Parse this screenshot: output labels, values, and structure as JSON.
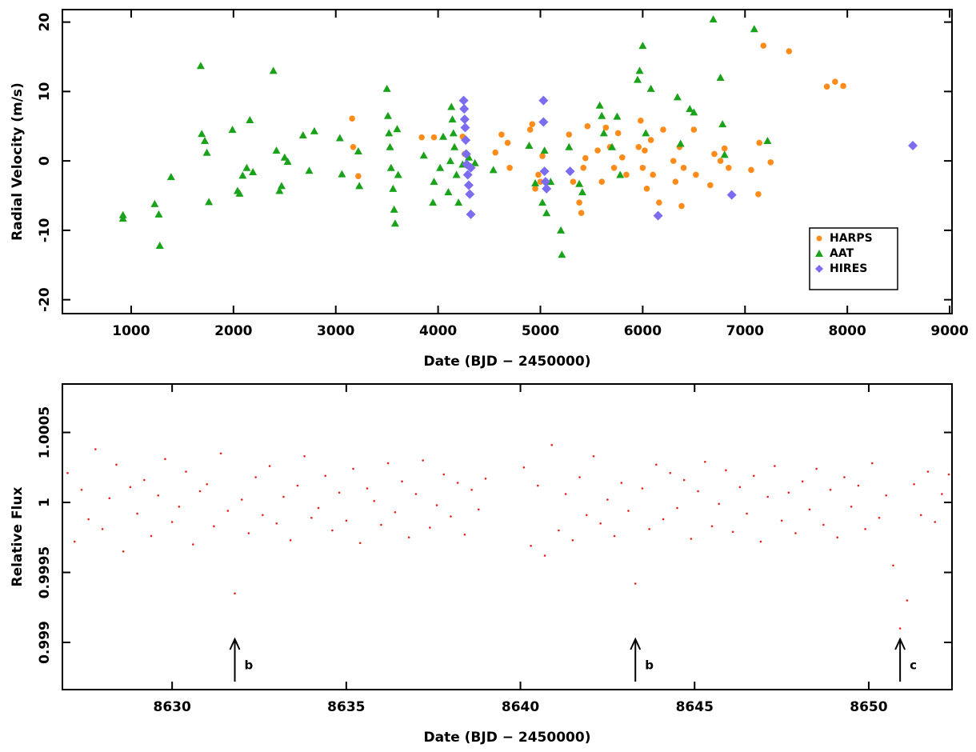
{
  "chart_data": [
    {
      "type": "scatter",
      "xlabel": "Date (BJD − 2450000)",
      "ylabel": "Radial Velocity (m/s)",
      "xlim": [
        328,
        9023
      ],
      "ylim": [
        -22,
        21.8
      ],
      "xticks": [
        1000,
        2000,
        3000,
        4000,
        5000,
        6000,
        7000,
        8000,
        9000
      ],
      "yticks": [
        -20,
        -10,
        0,
        10,
        20
      ],
      "legend": "lower right",
      "series": [
        {
          "name": "HARPS",
          "color": "#ff8c1a",
          "marker": "circle",
          "x": [
            3160,
            3170,
            3220,
            3840,
            3960,
            4240,
            4260,
            4560,
            4620,
            4680,
            4700,
            4900,
            4920,
            4950,
            4980,
            5000,
            5020,
            5280,
            5320,
            5380,
            5400,
            5420,
            5440,
            5460,
            5560,
            5600,
            5640,
            5680,
            5720,
            5760,
            5800,
            5840,
            5960,
            5980,
            6000,
            6020,
            6040,
            6080,
            6100,
            6160,
            6200,
            6300,
            6320,
            6360,
            6380,
            6400,
            6500,
            6520,
            6660,
            6700,
            6760,
            6800,
            6840,
            7060,
            7130,
            7140,
            7180,
            7250,
            7430,
            7800,
            7880,
            7960
          ],
          "values": [
            6.1,
            2,
            -2.2,
            3.4,
            3.4,
            3.5,
            1,
            1.2,
            3.8,
            2.6,
            -1,
            4.5,
            5.3,
            -4,
            -2,
            -3,
            0.7,
            3.8,
            -3,
            -6,
            -7.5,
            -1,
            0.4,
            5,
            1.5,
            -3,
            4.8,
            2,
            -1,
            4,
            0.5,
            -2,
            2,
            5.8,
            -1,
            1.5,
            -4,
            3,
            -2,
            -6,
            4.5,
            0,
            -3,
            2,
            -6.5,
            -1,
            4.5,
            -2,
            -3.5,
            1,
            0,
            1.8,
            -1,
            -1.3,
            -4.8,
            2.6,
            16.6,
            -0.2,
            15.8,
            10.7,
            11.4,
            10.8
          ]
        },
        {
          "name": "AAT",
          "color": "#1aa31a",
          "marker": "triangle",
          "x": [
            920,
            920,
            1230,
            1270,
            1280,
            1390,
            1680,
            1690,
            1720,
            1740,
            1760,
            1990,
            2040,
            2060,
            2090,
            2130,
            2160,
            2190,
            2390,
            2420,
            2450,
            2470,
            2500,
            2530,
            2680,
            2740,
            2790,
            3040,
            3060,
            3220,
            3230,
            3500,
            3510,
            3520,
            3530,
            3540,
            3560,
            3570,
            3580,
            3600,
            3610,
            3860,
            3950,
            3960,
            4020,
            4050,
            4100,
            4120,
            4130,
            4140,
            4150,
            4160,
            4180,
            4200,
            4240,
            4300,
            4360,
            4540,
            4890,
            4950,
            5020,
            5040,
            5060,
            5100,
            5200,
            5210,
            5280,
            5380,
            5410,
            5580,
            5600,
            5620,
            5700,
            5750,
            5780,
            5950,
            5970,
            6000,
            6030,
            6080,
            6340,
            6370,
            6460,
            6500,
            6690,
            6760,
            6780,
            6800,
            7090,
            7220
          ],
          "values": [
            -7.8,
            -8.3,
            -6.2,
            -7.7,
            -12.2,
            -2.3,
            13.7,
            3.9,
            2.9,
            1.2,
            -5.9,
            4.5,
            -4.3,
            -4.7,
            -2.1,
            -1,
            5.9,
            -1.6,
            13,
            1.5,
            -4.3,
            -3.6,
            0.5,
            -0.1,
            3.7,
            -1.4,
            4.3,
            3.3,
            -1.9,
            1.4,
            -3.6,
            10.4,
            6.5,
            4,
            2,
            -1,
            -4,
            -7,
            -9,
            4.6,
            -2,
            0.8,
            -6,
            -3,
            -1,
            3.5,
            -4.5,
            0,
            7.8,
            6,
            4,
            2,
            -2,
            -6,
            -0.5,
            0.5,
            -0.3,
            -1.3,
            2.2,
            -3.2,
            -6,
            1.5,
            -7.5,
            -3,
            -10,
            -13.5,
            2,
            -3.3,
            -4.5,
            8,
            6.5,
            4,
            2,
            6.4,
            -2,
            11.7,
            13,
            16.6,
            4,
            10.4,
            9.2,
            2.5,
            7.5,
            7,
            20.4,
            12,
            5.3,
            0.9,
            19,
            2.9
          ]
        },
        {
          "name": "HIRES",
          "color": "#7b6cf0",
          "marker": "diamond",
          "x": [
            4250,
            4255,
            4260,
            4265,
            4270,
            4275,
            4280,
            4290,
            4300,
            4310,
            4320,
            4320,
            5030,
            5030,
            5040,
            5050,
            5060,
            5290,
            6150,
            6870,
            8640
          ],
          "values": [
            8.7,
            7.5,
            6,
            4.8,
            3,
            1,
            -0.5,
            -2,
            -3.5,
            -4.8,
            -7.7,
            -1,
            8.7,
            5.6,
            -1.5,
            -3,
            -4,
            -1.5,
            -7.9,
            -4.9,
            2.2
          ]
        }
      ]
    },
    {
      "type": "scatter",
      "xlabel": "Date (BJD − 2450000)",
      "ylabel": "Relative Flux",
      "xlim": [
        8626.85,
        8652.39
      ],
      "ylim": [
        0.998663,
        1.000846
      ],
      "xticks": [
        8630,
        8635,
        8640,
        8645,
        8650
      ],
      "yticks": [
        0.999,
        0.9995,
        1,
        1.0005
      ],
      "series": [
        {
          "color": "#e8221b",
          "marker": "dot",
          "x": [
            8627.0,
            8627.2,
            8627.4,
            8627.6,
            8627.8,
            8628.0,
            8628.2,
            8628.4,
            8628.6,
            8628.8,
            8629.0,
            8629.2,
            8629.4,
            8629.6,
            8629.8,
            8630.0,
            8630.2,
            8630.4,
            8630.6,
            8630.8,
            8631.0,
            8631.2,
            8631.4,
            8631.6,
            8631.8,
            8632.0,
            8632.2,
            8632.4,
            8632.6,
            8632.8,
            8633.0,
            8633.2,
            8633.4,
            8633.6,
            8633.8,
            8634.0,
            8634.2,
            8634.4,
            8634.6,
            8634.8,
            8635.0,
            8635.2,
            8635.4,
            8635.6,
            8635.8,
            8636.0,
            8636.2,
            8636.4,
            8636.6,
            8636.8,
            8637.0,
            8637.2,
            8637.4,
            8637.6,
            8637.8,
            8638.0,
            8638.2,
            8638.4,
            8638.6,
            8638.8,
            8639.0,
            8640.1,
            8640.3,
            8640.5,
            8640.7,
            8640.9,
            8641.1,
            8641.3,
            8641.5,
            8641.7,
            8641.9,
            8642.1,
            8642.3,
            8642.5,
            8642.7,
            8642.9,
            8643.1,
            8643.3,
            8643.5,
            8643.7,
            8643.9,
            8644.1,
            8644.3,
            8644.5,
            8644.7,
            8644.9,
            8645.1,
            8645.3,
            8645.5,
            8645.7,
            8645.9,
            8646.1,
            8646.3,
            8646.5,
            8646.7,
            8646.9,
            8647.1,
            8647.3,
            8647.5,
            8647.7,
            8647.9,
            8648.1,
            8648.3,
            8648.5,
            8648.7,
            8648.9,
            8649.1,
            8649.3,
            8649.5,
            8649.7,
            8649.9,
            8650.1,
            8650.3,
            8650.5,
            8650.7,
            8650.9,
            8651.1,
            8651.3,
            8651.5,
            8651.7,
            8651.9,
            8652.1,
            8652.3
          ],
          "values": [
            1.00021,
            0.99972,
            1.00009,
            0.99988,
            1.00038,
            0.99981,
            1.00003,
            1.00027,
            0.99965,
            1.00011,
            0.99992,
            1.00016,
            0.99976,
            1.00005,
            1.00031,
            0.99986,
            0.99997,
            1.00022,
            0.9997,
            1.00008,
            1.00013,
            0.99983,
            1.00035,
            0.99994,
            0.99935,
            1.00002,
            0.99978,
            1.00018,
            0.99991,
            1.00026,
            0.99985,
            1.00004,
            0.99973,
            1.00012,
            1.00033,
            0.99989,
            0.99996,
            1.00019,
            0.9998,
            1.00007,
            0.99987,
            1.00024,
            0.99971,
            1.0001,
            1.00001,
            0.99984,
            1.00028,
            0.99993,
            1.00015,
            0.99975,
            1.00006,
            1.0003,
            0.99982,
            0.99998,
            1.0002,
            0.9999,
            1.00014,
            0.99977,
            1.00009,
            0.99995,
            1.00017,
            1.00025,
            0.99969,
            1.00012,
            0.99962,
            1.00041,
            0.9998,
            1.00006,
            0.99973,
            1.00018,
            0.99991,
            1.00033,
            0.99985,
            1.00002,
            0.99976,
            1.00014,
            0.99994,
            0.99942,
            1.0001,
            0.99981,
            1.00027,
            0.99988,
            1.00021,
            0.99996,
            1.00016,
            0.99974,
            1.00008,
            1.00029,
            0.99983,
            0.99999,
            1.00023,
            0.99979,
            1.00011,
            0.99992,
            1.00019,
            0.99972,
            1.00004,
            1.00026,
            0.99987,
            1.00007,
            0.99978,
            1.00015,
            0.99995,
            1.00024,
            0.99984,
            1.00009,
            0.99975,
            1.00018,
            0.99997,
            1.00012,
            0.99981,
            1.00028,
            0.99989,
            1.00005,
            0.99955,
            0.9991,
            0.9993,
            1.00013,
            0.99991,
            1.00022,
            0.99986,
            1.00006,
            1.0002
          ]
        }
      ],
      "annotations": [
        {
          "x": 8631.8,
          "text": "b"
        },
        {
          "x": 8643.3,
          "text": "b"
        },
        {
          "x": 8650.9,
          "text": "c"
        }
      ]
    }
  ]
}
